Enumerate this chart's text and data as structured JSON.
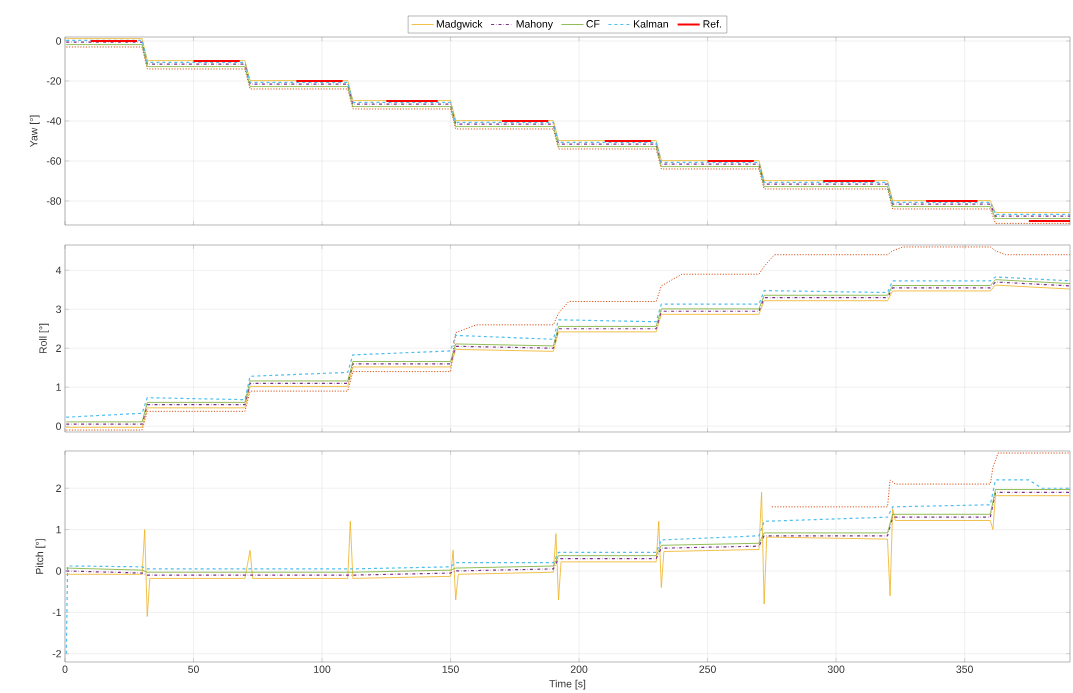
{
  "chart_data": [
    {
      "type": "line",
      "ylabel": "Yaw [°]",
      "xlim": [
        0,
        391
      ],
      "ylim": [
        -92,
        2
      ],
      "xticks": [
        0,
        50,
        100,
        150,
        200,
        250,
        300,
        350
      ],
      "yticks": [
        -80,
        -60,
        -40,
        -20,
        0
      ],
      "grid": true,
      "legend": "top",
      "tick_labels": "y",
      "x": [
        0.5,
        30,
        32,
        70,
        72,
        110,
        112,
        150,
        152,
        190,
        192,
        230,
        232,
        270,
        272,
        320,
        322,
        360,
        362,
        391
      ],
      "series": [
        {
          "color": "#d95319",
          "line_style": "dotted",
          "values": [
            -3,
            -3,
            -14,
            -14,
            -24,
            -24,
            -34,
            -34,
            -44,
            -44,
            -54,
            -54,
            -64,
            -64,
            -74,
            -74,
            -84,
            -84,
            -91.2,
            -91.2
          ]
        },
        {
          "name": "Madgwick",
          "color": "#edb120",
          "line_style": "solid",
          "values": [
            1.2,
            1.2,
            -9.8,
            -9.8,
            -19.8,
            -19.8,
            -29.8,
            -29.8,
            -39.8,
            -39.8,
            -49.8,
            -49.8,
            -59.8,
            -59.8,
            -69.8,
            -69.8,
            -79.8,
            -79.8,
            -85.8,
            -85.8
          ]
        },
        {
          "name": "Mahony",
          "color": "#7e2f8e",
          "line_style": "dashdot",
          "values": [
            -0.6,
            -0.6,
            -11.6,
            -11.6,
            -21.6,
            -21.6,
            -31.6,
            -31.6,
            -41.6,
            -41.6,
            -51.6,
            -51.6,
            -61.6,
            -61.6,
            -71.6,
            -71.6,
            -81.6,
            -81.6,
            -87.6,
            -87.6
          ]
        },
        {
          "name": "CF",
          "color": "#77ac30",
          "line_style": "solid",
          "values": [
            -1.8,
            -1.8,
            -12.8,
            -12.8,
            -22.8,
            -22.8,
            -32.8,
            -32.8,
            -42.8,
            -42.8,
            -52.8,
            -52.8,
            -62.8,
            -62.8,
            -72.8,
            -72.8,
            -82.8,
            -82.8,
            -88.8,
            -88.8
          ]
        },
        {
          "name": "Kalman",
          "color": "#4dbeee",
          "line_style": "dashed",
          "values": [
            0.3,
            0.3,
            -10.7,
            -10.7,
            -20.7,
            -20.7,
            -30.7,
            -30.7,
            -40.7,
            -40.7,
            -50.7,
            -50.7,
            -60.7,
            -60.7,
            -70.7,
            -70.7,
            -80.7,
            -80.7,
            -86.7,
            -86.7
          ]
        },
        {
          "name": "Ref.",
          "color": "#ff0000",
          "line_style": "solid",
          "x": [
            10,
            28,
            29,
            50,
            68,
            69,
            90,
            108,
            109,
            125,
            145,
            146,
            170,
            188,
            189,
            210,
            228,
            229,
            250,
            268,
            269,
            295,
            315,
            316,
            335,
            355,
            356,
            375,
            391
          ],
          "values": [
            0,
            0,
            null,
            -10,
            -10,
            null,
            -20,
            -20,
            null,
            -30,
            -30,
            null,
            -40,
            -40,
            null,
            -50,
            -50,
            null,
            -60,
            -60,
            null,
            -70,
            -70,
            null,
            -80,
            -80,
            null,
            -90,
            -90
          ]
        }
      ]
    },
    {
      "type": "line",
      "ylabel": "Roll [°]",
      "xlim": [
        0,
        391
      ],
      "ylim": [
        -0.15,
        4.65
      ],
      "xticks": [
        0,
        50,
        100,
        150,
        200,
        250,
        300,
        350
      ],
      "yticks": [
        0,
        1,
        2,
        3,
        4
      ],
      "grid": true,
      "tick_labels": "y",
      "x": [
        0.5,
        30,
        32,
        70,
        72,
        110,
        112,
        150,
        152,
        190,
        192,
        230,
        232,
        270,
        272,
        320,
        322,
        360,
        362,
        391
      ],
      "series": [
        {
          "color": "#d95319",
          "line_style": "dotted",
          "x": [
            0.5,
            30,
            32,
            70,
            72,
            110,
            112,
            150,
            152,
            160,
            190,
            192,
            196,
            230,
            232,
            240,
            270,
            272,
            276,
            320,
            322,
            326,
            360,
            362,
            366,
            391
          ],
          "values": [
            -0.1,
            -0.1,
            0.38,
            0.38,
            0.9,
            0.9,
            1.4,
            1.4,
            2.4,
            2.6,
            2.6,
            2.9,
            3.2,
            3.2,
            3.6,
            3.9,
            3.9,
            4.1,
            4.4,
            4.4,
            4.5,
            4.6,
            4.6,
            4.5,
            4.4,
            4.4
          ]
        },
        {
          "color": "#edb120",
          "line_style": "solid",
          "values": [
            -0.03,
            -0.03,
            0.47,
            0.47,
            1.02,
            1.02,
            1.52,
            1.52,
            1.97,
            1.92,
            2.42,
            2.42,
            2.87,
            2.87,
            3.22,
            3.22,
            3.47,
            3.47,
            3.62,
            3.52
          ]
        },
        {
          "color": "#7e2f8e",
          "line_style": "dashdot",
          "values": [
            0.05,
            0.05,
            0.55,
            0.55,
            1.1,
            1.1,
            1.6,
            1.6,
            2.05,
            2.0,
            2.5,
            2.5,
            2.95,
            2.95,
            3.3,
            3.3,
            3.55,
            3.55,
            3.7,
            3.6
          ]
        },
        {
          "color": "#77ac30",
          "line_style": "solid",
          "values": [
            0.11,
            0.11,
            0.61,
            0.61,
            1.16,
            1.16,
            1.66,
            1.66,
            2.11,
            2.06,
            2.56,
            2.56,
            3.01,
            3.01,
            3.36,
            3.36,
            3.61,
            3.61,
            3.76,
            3.66
          ]
        },
        {
          "color": "#4dbeee",
          "line_style": "dashed",
          "values": [
            0.23,
            0.33,
            0.73,
            0.68,
            1.28,
            1.38,
            1.83,
            1.93,
            2.33,
            2.23,
            2.73,
            2.68,
            3.13,
            3.13,
            3.48,
            3.43,
            3.73,
            3.73,
            3.83,
            3.73
          ]
        }
      ]
    },
    {
      "type": "line",
      "xlabel": "Time [s]",
      "ylabel": "Pitch [°]",
      "xlim": [
        0,
        391
      ],
      "ylim": [
        -2.2,
        2.9
      ],
      "xticks": [
        0,
        50,
        100,
        150,
        200,
        250,
        300,
        350
      ],
      "yticks": [
        -2,
        -1,
        0,
        1,
        2
      ],
      "grid": true,
      "x": [
        0.5,
        30,
        32,
        70,
        72,
        110,
        112,
        150,
        152,
        190,
        192,
        230,
        232,
        270,
        272,
        320,
        322,
        360,
        362,
        391
      ],
      "series": [
        {
          "color": "#d95319",
          "line_style": "dotted",
          "x": [
            275,
            320,
            321,
            323,
            360,
            361,
            363,
            391
          ],
          "values": [
            1.55,
            1.55,
            2.2,
            2.1,
            2.1,
            2.5,
            2.85,
            2.85
          ]
        },
        {
          "color": "#edb120",
          "line_style": "solid",
          "x": [
            0.5,
            30,
            31,
            32,
            33,
            70,
            72,
            73,
            110,
            111,
            112,
            150,
            151,
            152,
            153,
            190,
            191,
            192,
            193,
            230,
            231,
            232,
            233,
            270,
            271,
            272,
            273,
            320,
            321,
            322,
            323,
            360,
            361,
            362,
            391
          ],
          "values": [
            -0.08,
            -0.08,
            1.0,
            -1.1,
            -0.18,
            -0.18,
            0.5,
            -0.18,
            -0.18,
            1.2,
            -0.18,
            -0.13,
            0.5,
            -0.7,
            -0.08,
            -0.03,
            0.9,
            -0.7,
            0.22,
            0.22,
            1.2,
            -0.4,
            0.47,
            0.52,
            1.9,
            -0.8,
            0.82,
            0.77,
            -0.6,
            1.5,
            1.22,
            1.22,
            1.0,
            1.82,
            1.82
          ]
        },
        {
          "color": "#7e2f8e",
          "line_style": "dashdot",
          "values": [
            0,
            -0.05,
            -0.1,
            -0.1,
            -0.1,
            -0.1,
            -0.1,
            -0.05,
            0.0,
            0.05,
            0.3,
            0.3,
            0.55,
            0.6,
            0.85,
            0.85,
            1.3,
            1.3,
            1.9,
            1.9
          ]
        },
        {
          "color": "#77ac30",
          "line_style": "solid",
          "values": [
            0.07,
            0.02,
            -0.03,
            -0.03,
            -0.03,
            -0.03,
            -0.03,
            0.02,
            0.07,
            0.12,
            0.37,
            0.37,
            0.62,
            0.67,
            0.92,
            0.92,
            1.37,
            1.37,
            1.97,
            1.97
          ]
        },
        {
          "color": "#4dbeee",
          "line_style": "dashed",
          "x": [
            0.5,
            1,
            3,
            30,
            32,
            70,
            72,
            110,
            112,
            150,
            152,
            190,
            192,
            230,
            232,
            270,
            272,
            320,
            322,
            360,
            362,
            375,
            380,
            391
          ],
          "values": [
            -2,
            0.12,
            0.12,
            0.1,
            0.05,
            0.05,
            0.05,
            0.05,
            0.05,
            0.1,
            0.2,
            0.2,
            0.45,
            0.45,
            0.75,
            0.85,
            1.2,
            1.3,
            1.55,
            1.6,
            2.2,
            2.2,
            2.0,
            2.0
          ]
        }
      ]
    }
  ]
}
